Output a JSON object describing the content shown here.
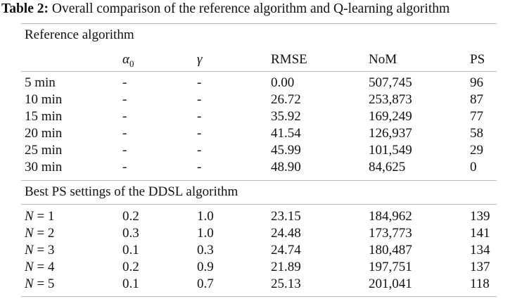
{
  "caption": {
    "label": "Table 2:",
    "text": "Overall comparison of the reference algorithm and Q-learning algorithm"
  },
  "sections": [
    {
      "title": "Reference algorithm",
      "rows": [
        {
          "name": "5 min",
          "alpha": "-",
          "gamma": "-",
          "rmse": "0.00",
          "nom": "507,745",
          "ps": "96"
        },
        {
          "name": "10 min",
          "alpha": "-",
          "gamma": "-",
          "rmse": "26.72",
          "nom": "253,873",
          "ps": "87"
        },
        {
          "name": "15 min",
          "alpha": "-",
          "gamma": "-",
          "rmse": "35.92",
          "nom": "169,249",
          "ps": "77"
        },
        {
          "name": "20 min",
          "alpha": "-",
          "gamma": "-",
          "rmse": "41.54",
          "nom": "126,937",
          "ps": "58"
        },
        {
          "name": "25 min",
          "alpha": "-",
          "gamma": "-",
          "rmse": "45.99",
          "nom": "101,549",
          "ps": "29"
        },
        {
          "name": "30 min",
          "alpha": "-",
          "gamma": "-",
          "rmse": "48.90",
          "nom": "84,625",
          "ps": "0"
        }
      ]
    },
    {
      "title": "Best PS settings of the DDSL algorithm",
      "rows": [
        {
          "name_var": "N",
          "name_eq": " = 1",
          "alpha": "0.2",
          "gamma": "1.0",
          "rmse": "23.15",
          "nom": "184,962",
          "ps": "139"
        },
        {
          "name_var": "N",
          "name_eq": " = 2",
          "alpha": "0.3",
          "gamma": "1.0",
          "rmse": "24.48",
          "nom": "173,773",
          "ps": "141"
        },
        {
          "name_var": "N",
          "name_eq": " = 3",
          "alpha": "0.1",
          "gamma": "0.3",
          "rmse": "24.74",
          "nom": "180,487",
          "ps": "134"
        },
        {
          "name_var": "N",
          "name_eq": " = 4",
          "alpha": "0.2",
          "gamma": "0.9",
          "rmse": "21.89",
          "nom": "197,751",
          "ps": "137"
        },
        {
          "name_var": "N",
          "name_eq": " = 5",
          "alpha": "0.1",
          "gamma": "0.7",
          "rmse": "25.13",
          "nom": "201,041",
          "ps": "118"
        }
      ]
    }
  ],
  "header": {
    "alpha_symbol": "α",
    "alpha_sub": "0",
    "gamma_symbol": "γ",
    "rmse": "RMSE",
    "nom": "NoM",
    "ps": "PS"
  }
}
